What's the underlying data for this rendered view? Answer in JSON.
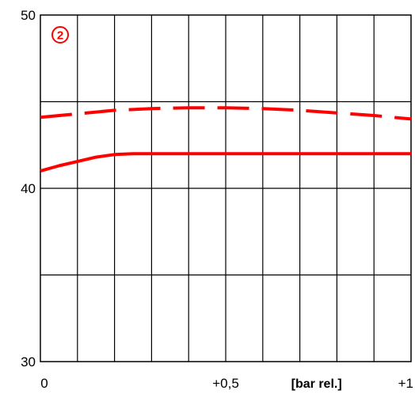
{
  "chart_data": {
    "type": "line",
    "title": "",
    "xlabel": "[bar rel.]",
    "ylabel": "",
    "xlim": [
      0,
      1
    ],
    "ylim": [
      30,
      50
    ],
    "grid": true,
    "x_ticks": [
      {
        "value": 0,
        "label": "0"
      },
      {
        "value": 0.5,
        "label": "+0,5"
      },
      {
        "value": 1,
        "label": "+1"
      }
    ],
    "y_ticks": [
      {
        "value": 30,
        "label": "30"
      },
      {
        "value": 40,
        "label": "40"
      },
      {
        "value": 50,
        "label": "50"
      }
    ],
    "x_gridlines": [
      0.1,
      0.2,
      0.3,
      0.4,
      0.5,
      0.6,
      0.7,
      0.8,
      0.9
    ],
    "y_gridlines": [
      35,
      40,
      45
    ],
    "annotation": {
      "label": "2",
      "color": "#ff0000"
    },
    "series": [
      {
        "style": "dashed",
        "color": "#ff0000",
        "x": [
          0,
          0.1,
          0.2,
          0.3,
          0.4,
          0.5,
          0.6,
          0.7,
          0.8,
          0.9,
          1.0
        ],
        "y": [
          44.1,
          44.3,
          44.5,
          44.6,
          44.65,
          44.65,
          44.6,
          44.5,
          44.35,
          44.2,
          44.0
        ]
      },
      {
        "style": "solid",
        "color": "#ff0000",
        "x": [
          0,
          0.05,
          0.1,
          0.15,
          0.2,
          0.25,
          0.3,
          0.4,
          0.5,
          0.6,
          0.7,
          0.8,
          0.9,
          1.0
        ],
        "y": [
          41.0,
          41.3,
          41.55,
          41.8,
          41.95,
          42.0,
          42.0,
          42.0,
          42.0,
          42.0,
          42.0,
          42.0,
          42.0,
          42.0
        ]
      }
    ]
  }
}
